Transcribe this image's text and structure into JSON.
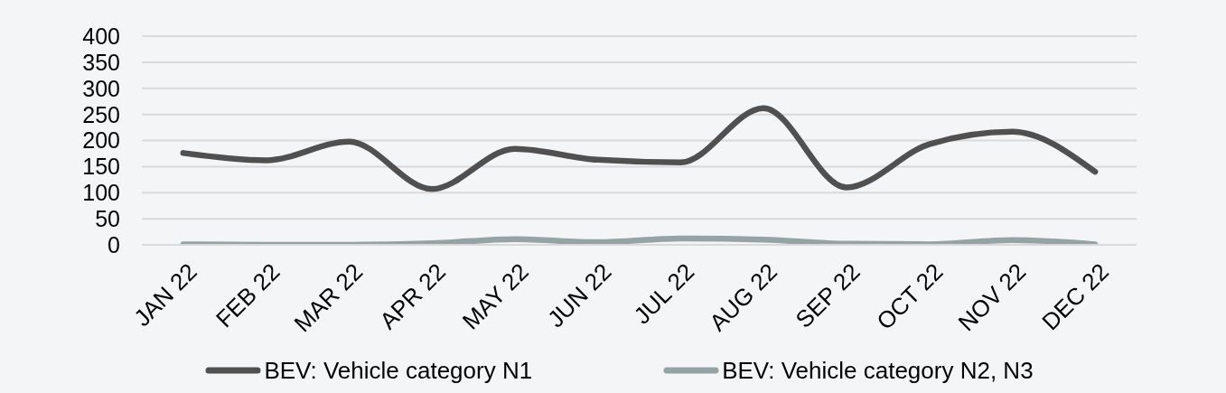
{
  "chart_data": {
    "type": "line",
    "categories": [
      "JAN 22",
      "FEB 22",
      "MAR 22",
      "APR 22",
      "MAY 22",
      "JUN 22",
      "JUL 22",
      "AUG 22",
      "SEP 22",
      "OCT 22",
      "NOV 22",
      "DEC 22"
    ],
    "series": [
      {
        "name": "BEV: Vehicle category N1",
        "color": "#505050",
        "values": [
          176,
          162,
          198,
          107,
          184,
          163,
          158,
          262,
          110,
          193,
          217,
          140
        ]
      },
      {
        "name": "BEV: Vehicle category N2, N3",
        "color": "#95a3a4",
        "values": [
          1,
          0,
          0,
          3,
          11,
          5,
          12,
          10,
          2,
          1,
          9,
          1
        ]
      }
    ],
    "ylim": [
      0,
      400
    ],
    "yticks": [
      0,
      50,
      100,
      150,
      200,
      250,
      300,
      350,
      400
    ],
    "grid": "y",
    "legend": "bottom"
  }
}
